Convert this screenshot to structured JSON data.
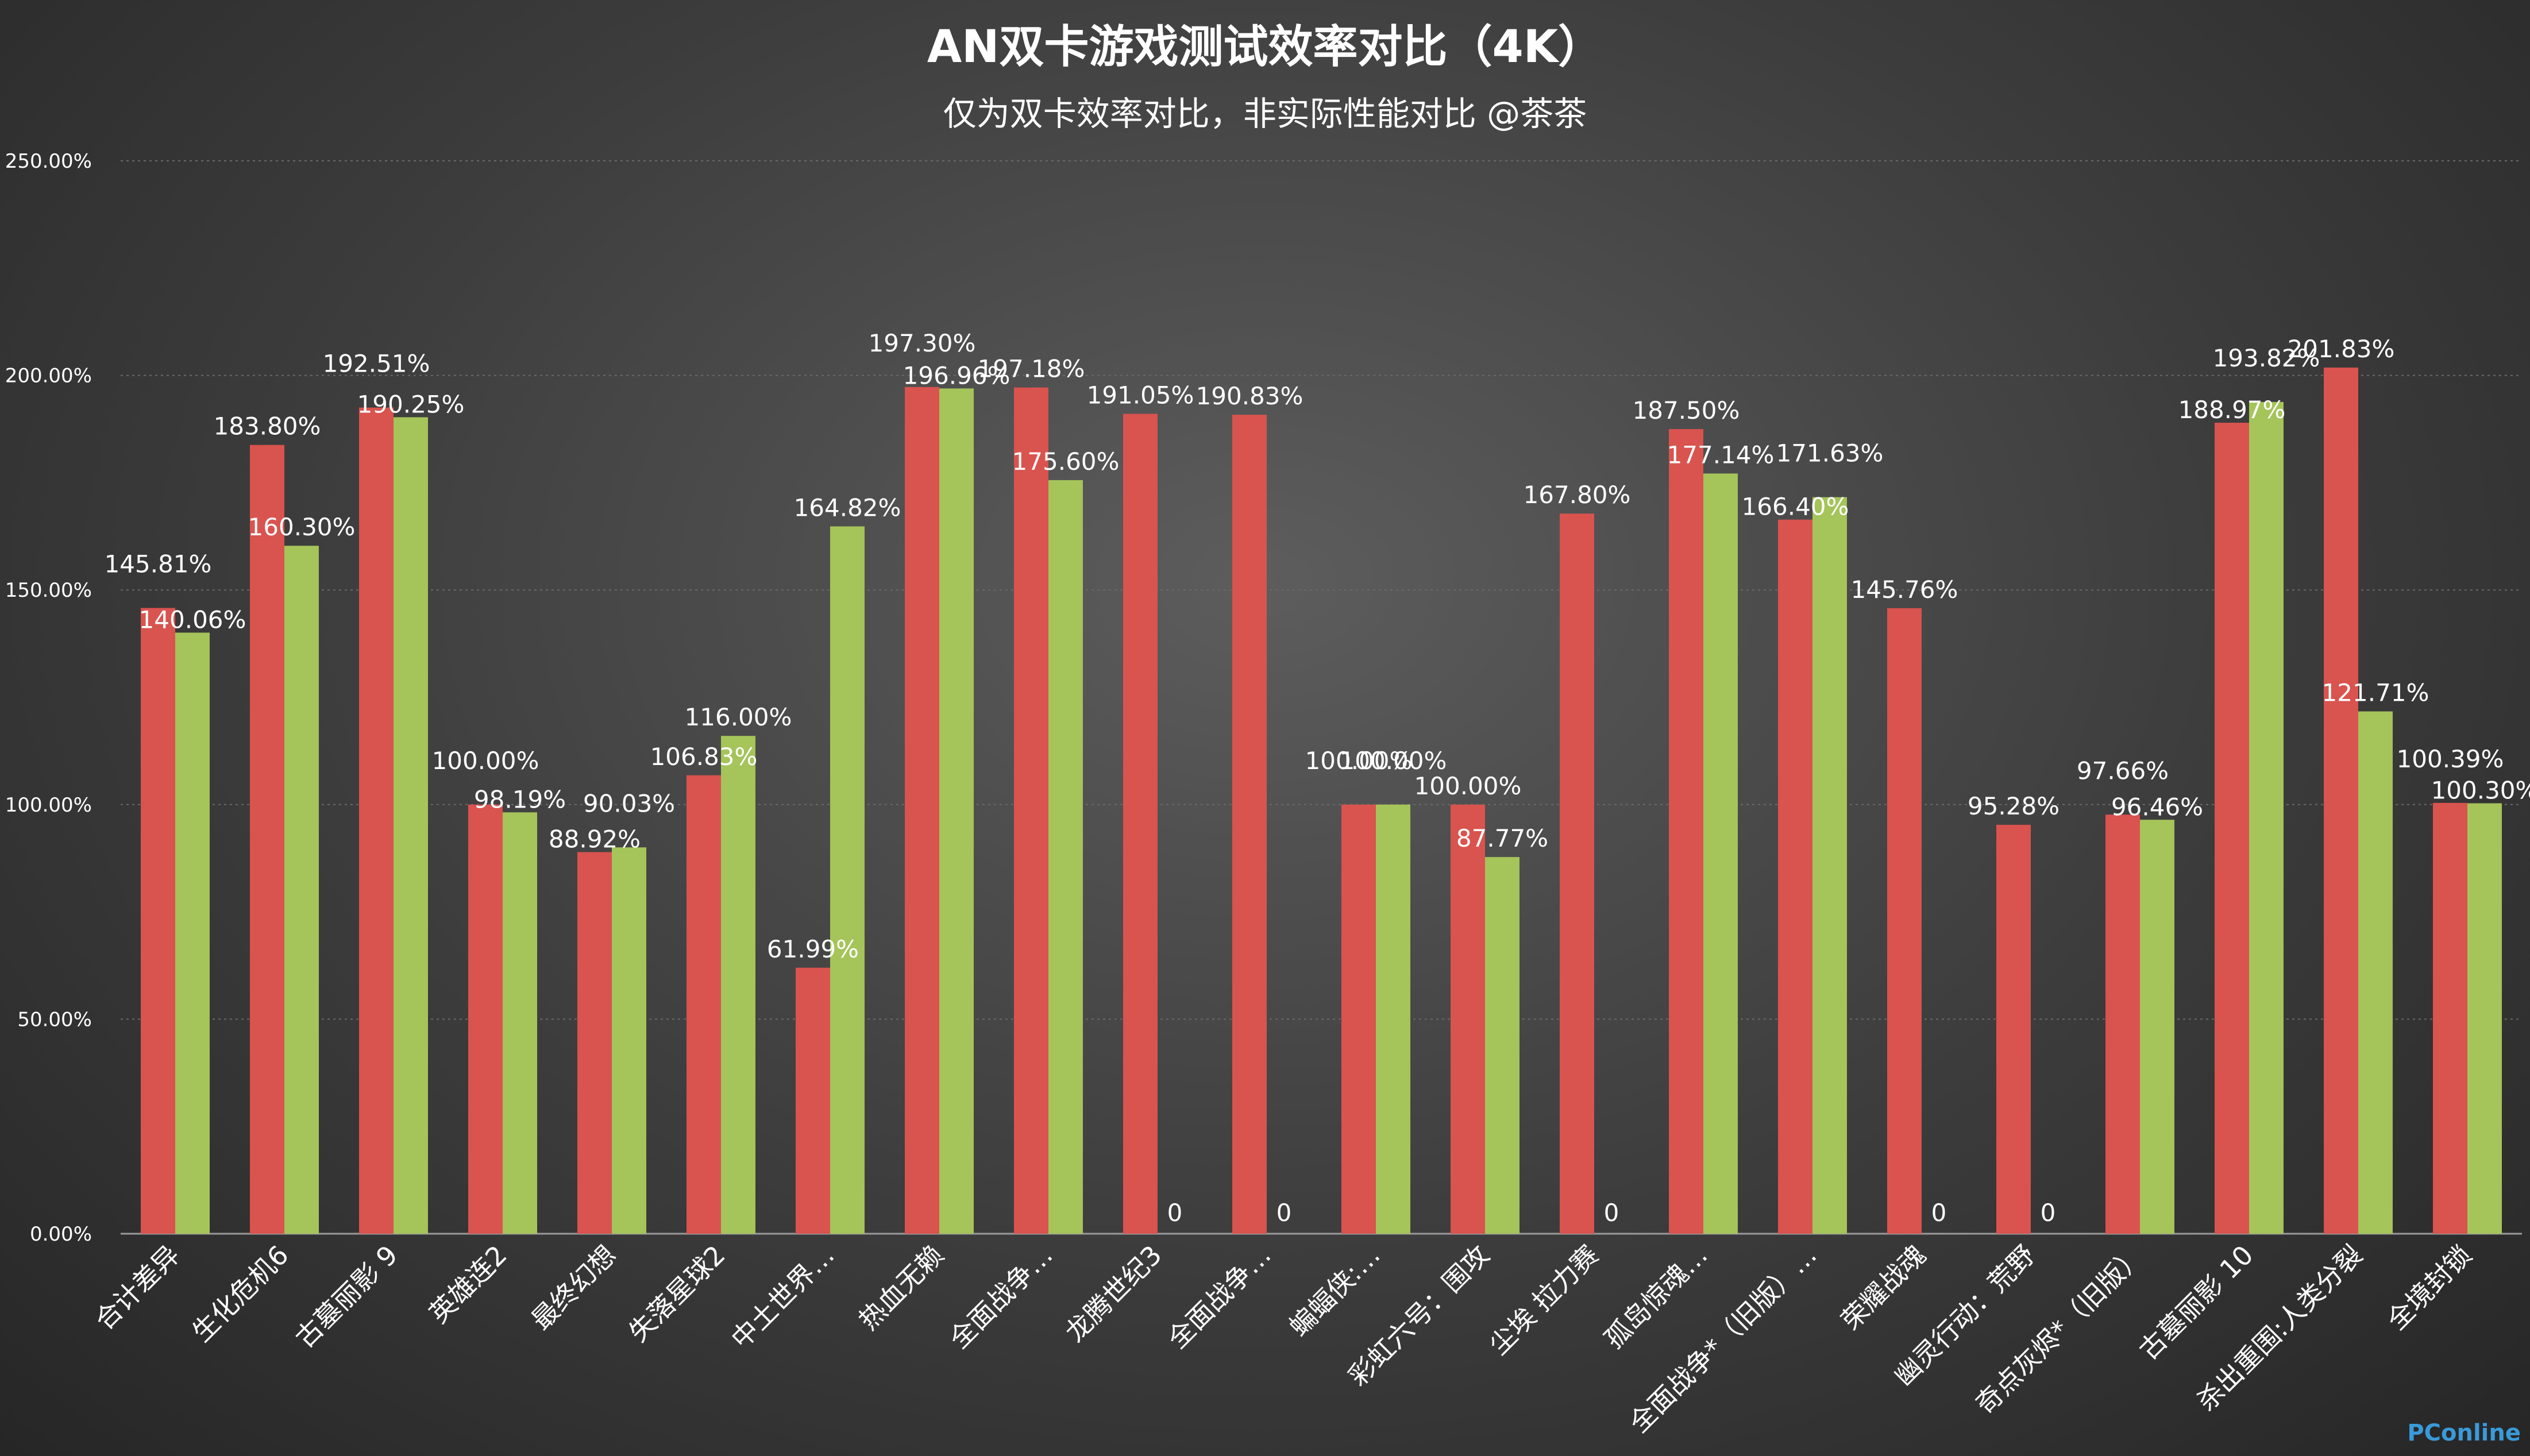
{
  "chart_data": {
    "type": "bar",
    "title": "AN双卡游戏测试效率对比（4K）",
    "subtitle": "仅为双卡效率对比，非实际性能对比 @茶茶",
    "ylim": [
      0,
      250
    ],
    "yticks": [
      "0.00%",
      "50.00%",
      "100.00%",
      "150.00%",
      "200.00%",
      "250.00%"
    ],
    "grid": true,
    "categories": [
      "合计差异",
      "生化危机6",
      "古墓丽影 9",
      "英雄连2",
      "最终幻想",
      "失落星球2",
      "中土世界…",
      "热血无赖",
      "全面战争…",
      "龙腾世纪3",
      "全面战争…",
      "蝙蝠侠:…",
      "彩虹六号：围攻",
      "尘埃 拉力赛",
      "孤岛惊魂…",
      "全面战争*（旧版）…",
      "荣耀战魂",
      "幽灵行动：荒野",
      "奇点灰烬*（旧版）",
      "古墓丽影 10",
      "杀出重围:人类分裂",
      "全境封锁"
    ],
    "series": [
      {
        "color": "#d9534f",
        "values": [
          145.81,
          183.8,
          192.51,
          100.0,
          88.92,
          106.83,
          61.99,
          197.3,
          197.18,
          191.05,
          190.83,
          100.0,
          100.0,
          167.8,
          187.5,
          166.4,
          145.76,
          95.28,
          97.66,
          188.97,
          201.83,
          100.39
        ],
        "labels": [
          "145.81%",
          "183.80%",
          "192.51%",
          "100.00%",
          "88.92%",
          "106.83%",
          "61.99%",
          "197.30%",
          "197.18%",
          "191.05%",
          "190.83%",
          "100.00%",
          "100.00%",
          "167.80%",
          "187.50%",
          "166.40%",
          "145.76%",
          "95.28%",
          "97.66%",
          "188.97%",
          "201.83%",
          "100.39%"
        ]
      },
      {
        "color": "#a5c45a",
        "values": [
          140.06,
          160.3,
          190.25,
          98.19,
          90.03,
          116.0,
          164.82,
          196.96,
          175.6,
          0,
          0,
          100.0,
          87.77,
          0,
          177.14,
          171.63,
          0,
          0,
          96.46,
          193.82,
          121.71,
          100.3
        ],
        "labels": [
          "140.06%",
          "160.30%",
          "190.25%",
          "98.19%",
          "90.03%",
          "116.00%",
          "164.82%",
          "196.96%",
          "175.60%",
          "0",
          "0",
          "100.00%",
          "87.77%",
          "0",
          "177.14%",
          "171.63%",
          "0",
          "0",
          "96.46%",
          "193.82%",
          "121.71%",
          "100.30%"
        ]
      }
    ]
  },
  "watermark": {
    "text": "PConline",
    "color": "#3a9ad9"
  }
}
